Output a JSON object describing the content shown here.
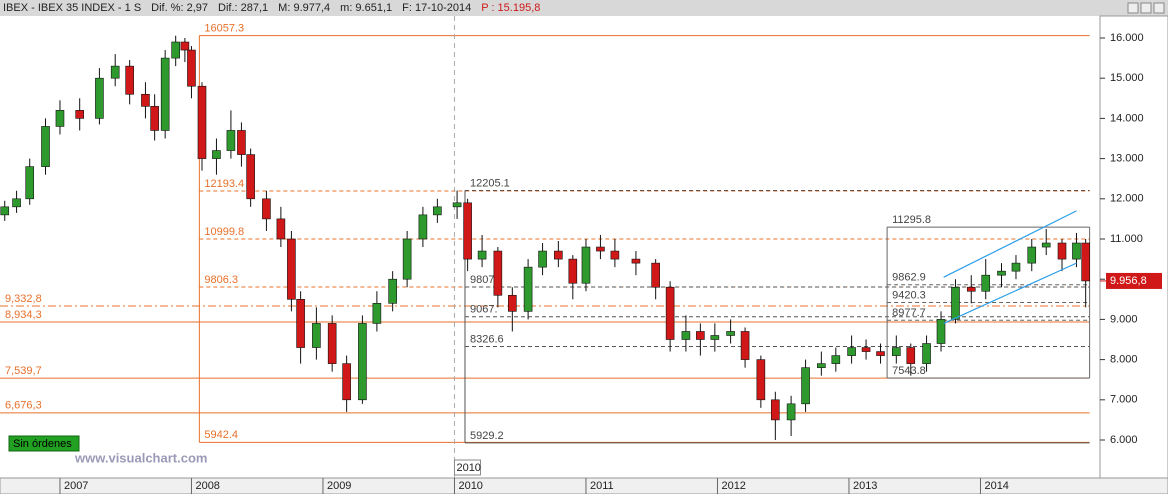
{
  "header": [
    "IBEX - IBEX 35 INDEX - 1 S",
    "Dif. %: 2,97",
    "Dif.: 287,1",
    "M: 9.977,4",
    "m: 9.651,1",
    "F: 17-10-2014",
    "P : 15.195,8"
  ],
  "status": "Sin órdenes",
  "watermark": "www.visualchart.com",
  "chart_data": {
    "type": "candlestick",
    "xlim": [
      2006.544,
      2014.909
    ],
    "ylim": [
      5055,
      16547
    ],
    "xticks": [
      2007,
      2008,
      2009,
      2010,
      2011,
      2012,
      2013,
      2014
    ],
    "yticks": [
      {
        "value": 6000,
        "label": "6.000"
      },
      {
        "value": 7000,
        "label": "7.000"
      },
      {
        "value": 8000,
        "label": "8.000"
      },
      {
        "value": 9000,
        "label": "9.000"
      },
      {
        "value": 10000,
        "label": "10.000"
      },
      {
        "value": 11000,
        "label": "11.000"
      },
      {
        "value": 12000,
        "label": "12.000"
      },
      {
        "value": 13000,
        "label": "13.000"
      },
      {
        "value": 14000,
        "label": "14.000"
      },
      {
        "value": 15000,
        "label": "15.000"
      },
      {
        "value": 16000,
        "label": "16.000"
      }
    ],
    "up_color": "#2e9a2e",
    "down_color": "#d01818",
    "x": [
      2006.58,
      2006.67,
      2006.77,
      2006.89,
      2007.0,
      2007.15,
      2007.3,
      2007.42,
      2007.53,
      2007.65,
      2007.72,
      2007.8,
      2007.88,
      2007.95,
      2008.0,
      2008.08,
      2008.19,
      2008.3,
      2008.38,
      2008.45,
      2008.57,
      2008.68,
      2008.76,
      2008.83,
      2008.95,
      2009.07,
      2009.18,
      2009.3,
      2009.41,
      2009.53,
      2009.64,
      2009.76,
      2009.87,
      2010.02,
      2010.1,
      2010.21,
      2010.33,
      2010.44,
      2010.56,
      2010.67,
      2010.79,
      2010.9,
      2011.0,
      2011.11,
      2011.22,
      2011.38,
      2011.53,
      2011.64,
      2011.76,
      2011.87,
      2011.98,
      2012.1,
      2012.21,
      2012.33,
      2012.44,
      2012.56,
      2012.67,
      2012.79,
      2012.9,
      2013.02,
      2013.13,
      2013.24,
      2013.36,
      2013.47,
      2013.59,
      2013.7,
      2013.81,
      2013.93,
      2014.04,
      2014.16,
      2014.27,
      2014.39,
      2014.5,
      2014.62,
      2014.73,
      2014.8
    ],
    "ohlc": [
      [
        11600,
        11950,
        11450,
        11800
      ],
      [
        11800,
        12200,
        11650,
        12000
      ],
      [
        12000,
        13000,
        11850,
        12800
      ],
      [
        12800,
        14000,
        12600,
        13800
      ],
      [
        13800,
        14450,
        13600,
        14200
      ],
      [
        14200,
        14500,
        13700,
        14000
      ],
      [
        14000,
        15250,
        13850,
        15000
      ],
      [
        15000,
        15600,
        14800,
        15300
      ],
      [
        15300,
        15450,
        14350,
        14600
      ],
      [
        14600,
        14900,
        14000,
        14300
      ],
      [
        14300,
        14600,
        13450,
        13700
      ],
      [
        13700,
        15700,
        13500,
        15500
      ],
      [
        15500,
        16057,
        15300,
        15900
      ],
      [
        15900,
        16000,
        15400,
        15700
      ],
      [
        15700,
        15800,
        14500,
        14800
      ],
      [
        14800,
        14900,
        12700,
        13000
      ],
      [
        13000,
        13500,
        12600,
        13200
      ],
      [
        13200,
        14200,
        13000,
        13700
      ],
      [
        13700,
        13900,
        12800,
        13100
      ],
      [
        13100,
        13250,
        11800,
        12000
      ],
      [
        12000,
        12200,
        11200,
        11500
      ],
      [
        11500,
        11800,
        10800,
        11000
      ],
      [
        11000,
        11200,
        9200,
        9500
      ],
      [
        9500,
        9700,
        7900,
        8300
      ],
      [
        8300,
        9300,
        8000,
        8900
      ],
      [
        8900,
        9100,
        7700,
        7900
      ],
      [
        7900,
        8100,
        6700,
        7000
      ],
      [
        7000,
        9100,
        6900,
        8900
      ],
      [
        8900,
        9700,
        8700,
        9400
      ],
      [
        9400,
        10200,
        9200,
        10000
      ],
      [
        10000,
        11200,
        9800,
        11000
      ],
      [
        11000,
        11800,
        10800,
        11600
      ],
      [
        11600,
        12000,
        11400,
        11800
      ],
      [
        11800,
        12205,
        11500,
        11900
      ],
      [
        11900,
        12000,
        10200,
        10500
      ],
      [
        10500,
        11100,
        10300,
        10700
      ],
      [
        10700,
        10800,
        9300,
        9600
      ],
      [
        9600,
        9800,
        8700,
        9200
      ],
      [
        9200,
        10500,
        9000,
        10300
      ],
      [
        10300,
        10900,
        10100,
        10700
      ],
      [
        10700,
        10950,
        10300,
        10500
      ],
      [
        10500,
        10600,
        9500,
        9900
      ],
      [
        9900,
        11000,
        9700,
        10800
      ],
      [
        10800,
        11100,
        10500,
        10700
      ],
      [
        10700,
        11000,
        10300,
        10500
      ],
      [
        10500,
        10700,
        10100,
        10400
      ],
      [
        10400,
        10500,
        9500,
        9800
      ],
      [
        9800,
        9950,
        8200,
        8500
      ],
      [
        8500,
        9100,
        8200,
        8700
      ],
      [
        8700,
        8900,
        8100,
        8500
      ],
      [
        8500,
        8900,
        8200,
        8600
      ],
      [
        8600,
        9000,
        8400,
        8700
      ],
      [
        8700,
        8800,
        7800,
        8000
      ],
      [
        8000,
        8100,
        6800,
        7000
      ],
      [
        7000,
        7200,
        6000,
        6500
      ],
      [
        6500,
        7100,
        6100,
        6900
      ],
      [
        6900,
        8000,
        6700,
        7800
      ],
      [
        7800,
        8200,
        7600,
        7900
      ],
      [
        7900,
        8300,
        7700,
        8100
      ],
      [
        8100,
        8600,
        7900,
        8300
      ],
      [
        8300,
        8500,
        8000,
        8200
      ],
      [
        8200,
        8400,
        7900,
        8100
      ],
      [
        8100,
        8600,
        7900,
        8300
      ],
      [
        8300,
        8400,
        7600,
        7900
      ],
      [
        7900,
        8600,
        7700,
        8400
      ],
      [
        8400,
        9200,
        8200,
        9000
      ],
      [
        9000,
        10000,
        8900,
        9800
      ],
      [
        9800,
        10100,
        9400,
        9700
      ],
      [
        9700,
        10500,
        9500,
        10100
      ],
      [
        10100,
        10400,
        9800,
        10200
      ],
      [
        10200,
        10600,
        10000,
        10400
      ],
      [
        10400,
        11000,
        10200,
        10800
      ],
      [
        10800,
        11250,
        10600,
        10900
      ],
      [
        10900,
        11000,
        10200,
        10500
      ],
      [
        10500,
        11150,
        10300,
        10900
      ],
      [
        10900,
        11000,
        9300,
        9956.8
      ]
    ],
    "last_price": {
      "value": 9956.8,
      "label": "9.956,8"
    },
    "cursor": 2010,
    "level_groups": [
      {
        "x0": 2008.06,
        "x1": 2014.83,
        "color": "#e8702a",
        "text_color": "#e8702a",
        "box": false,
        "levels": [
          16057.3,
          12193.4,
          10999.8,
          9806.3,
          5942.4
        ],
        "styles": [
          "solid",
          "dashed",
          "dashed",
          "dashed",
          "solid"
        ]
      },
      {
        "x0": 2006.544,
        "x1": 2014.83,
        "color": "#e8702a",
        "text_color": "#e8702a",
        "box": false,
        "levels": [
          {
            "value": 9332.8,
            "label": "9,332,8"
          },
          {
            "value": 8934.3,
            "label": "8,934,3"
          },
          {
            "value": 7539.7,
            "label": "7,539,7"
          },
          {
            "value": 6676.3,
            "label": "6,676,3"
          }
        ],
        "styles": [
          "dashdot",
          "solid",
          "solid",
          "solid"
        ]
      },
      {
        "x0": 2010.08,
        "x1": 2014.83,
        "color": "#555555",
        "text_color": "#444444",
        "box": false,
        "levels": [
          12205.1,
          {
            "value": 9807,
            "label": "9807."
          },
          {
            "value": 9067,
            "label": "9067."
          },
          8326.6,
          5929.2
        ],
        "styles": [
          "dashed",
          "dashed",
          "dashed",
          "dashed",
          "solid"
        ]
      },
      {
        "x0": 2013.29,
        "x1": 2014.83,
        "color": "#666666",
        "text_color": "#444444",
        "box": true,
        "levels": [
          11295.8,
          9862.9,
          9420.3,
          8977.7,
          7543.8
        ],
        "styles": [
          "solid",
          "dashed",
          "dashed",
          "dashed",
          "solid"
        ]
      }
    ],
    "channel": {
      "color": "#2a9ee8",
      "lines": [
        [
          [
            2013.72,
            10050
          ],
          [
            2014.73,
            11700
          ]
        ],
        [
          [
            2013.72,
            8900
          ],
          [
            2014.73,
            10400
          ]
        ]
      ]
    }
  }
}
